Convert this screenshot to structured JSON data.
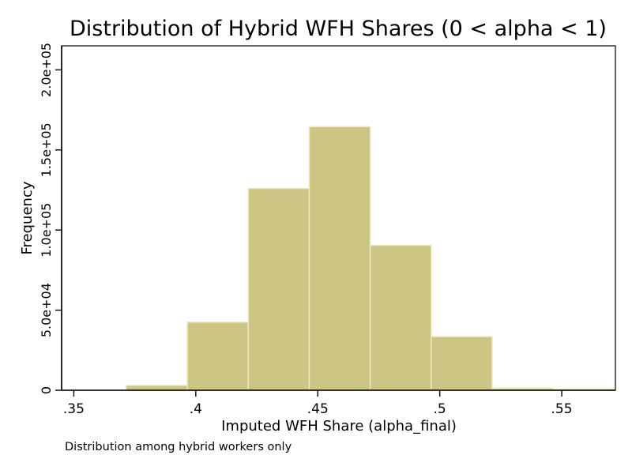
{
  "chart_data": {
    "type": "bar",
    "title": "Distribution of Hybrid WFH Shares (0 < alpha < 1)",
    "xlabel": "Imputed WFH Share (alpha_final)",
    "ylabel": "Frequency",
    "note": "Distribution among hybrid workers only",
    "xlim": [
      0.345,
      0.572
    ],
    "ylim": [
      0,
      215000
    ],
    "x_ticks": [
      {
        "value": 0.35,
        "label": ".35"
      },
      {
        "value": 0.4,
        "label": ".4"
      },
      {
        "value": 0.45,
        "label": ".45"
      },
      {
        "value": 0.5,
        "label": ".5"
      },
      {
        "value": 0.55,
        "label": ".55"
      }
    ],
    "y_ticks": [
      {
        "value": 0,
        "label": "0"
      },
      {
        "value": 50000,
        "label": "5.0e+04"
      },
      {
        "value": 100000,
        "label": "1.0e+05"
      },
      {
        "value": 150000,
        "label": "1.5e+05"
      },
      {
        "value": 200000,
        "label": "2.0e+05"
      }
    ],
    "bins": [
      {
        "start": 0.3715,
        "end": 0.3965,
        "value": 3000
      },
      {
        "start": 0.3965,
        "end": 0.4215,
        "value": 42500
      },
      {
        "start": 0.4215,
        "end": 0.4465,
        "value": 126000
      },
      {
        "start": 0.4465,
        "end": 0.4715,
        "value": 164500
      },
      {
        "start": 0.4715,
        "end": 0.4965,
        "value": 90500
      },
      {
        "start": 0.4965,
        "end": 0.5215,
        "value": 33500
      },
      {
        "start": 0.5215,
        "end": 0.5465,
        "value": 1200
      },
      {
        "start": 0.5465,
        "end": 0.5715,
        "value": 600
      }
    ],
    "grid": false,
    "legend": "none",
    "bar_color": "#cdc583",
    "bar_edge_color": "#ece8c4"
  }
}
